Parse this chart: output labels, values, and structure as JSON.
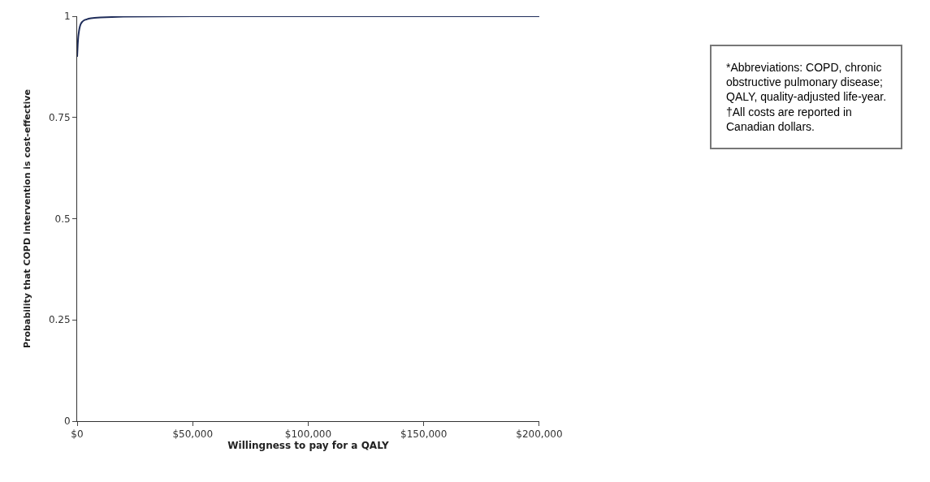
{
  "chart_data": {
    "type": "line",
    "xlabel": "Willingness to pay for a QALY",
    "ylabel": "Probability that COPD intervention is cost-effective",
    "x": [
      0,
      250,
      500,
      1000,
      1500,
      2000,
      3000,
      4000,
      5000,
      7500,
      10000,
      15000,
      20000,
      50000,
      100000,
      150000,
      200000
    ],
    "series": [
      {
        "color": "#1f2d5a",
        "values": [
          0.9,
          0.93,
          0.95,
          0.97,
          0.98,
          0.985,
          0.99,
          0.992,
          0.994,
          0.996,
          0.997,
          0.998,
          0.999,
          1,
          1,
          1,
          1
        ]
      }
    ],
    "xlim": [
      0,
      200000
    ],
    "xticks": [
      {
        "value": 0,
        "label": "$0"
      },
      {
        "value": 50000,
        "label": "$50,000"
      },
      {
        "value": 100000,
        "label": "$100,000"
      },
      {
        "value": 150000,
        "label": "$150,000"
      },
      {
        "value": 200000,
        "label": "$200,000"
      }
    ],
    "ylim": [
      0,
      1
    ],
    "yticks": [
      0,
      0.25,
      0.5,
      0.75,
      1
    ],
    "legend": false,
    "marker": "none",
    "line_style": "solid",
    "annotations": [
      "*Abbreviations: COPD, chronic obstructive pulmonary disease; QALY, quality-adjusted life-year. †All costs are reported in Canadian dollars."
    ]
  }
}
